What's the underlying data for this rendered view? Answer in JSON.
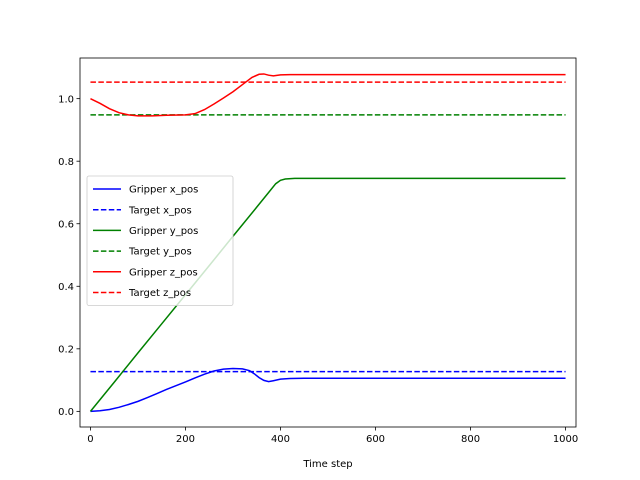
{
  "chart_data": {
    "type": "line",
    "title": "",
    "xlabel": "Time step",
    "ylabel": "",
    "xlim": [
      -22,
      1022
    ],
    "ylim": [
      -0.05,
      1.13
    ],
    "xticks": [
      0,
      200,
      400,
      600,
      800,
      1000
    ],
    "yticks": [
      0.0,
      0.2,
      0.4,
      0.6,
      0.8,
      1.0
    ],
    "xtick_labels": [
      "0",
      "200",
      "400",
      "600",
      "800",
      "1000"
    ],
    "ytick_labels": [
      "0.0",
      "0.2",
      "0.4",
      "0.6",
      "0.8",
      "1.0"
    ],
    "grid": false,
    "legend_position": "center-left",
    "series": [
      {
        "name": "Gripper x_pos",
        "color": "#0000ff",
        "style": "solid",
        "points": [
          [
            0,
            0.0
          ],
          [
            20,
            0.002
          ],
          [
            40,
            0.006
          ],
          [
            60,
            0.013
          ],
          [
            80,
            0.022
          ],
          [
            100,
            0.032
          ],
          [
            120,
            0.044
          ],
          [
            140,
            0.057
          ],
          [
            160,
            0.07
          ],
          [
            180,
            0.082
          ],
          [
            200,
            0.094
          ],
          [
            220,
            0.107
          ],
          [
            240,
            0.119
          ],
          [
            260,
            0.129
          ],
          [
            280,
            0.135
          ],
          [
            300,
            0.137
          ],
          [
            320,
            0.136
          ],
          [
            335,
            0.13
          ],
          [
            345,
            0.12
          ],
          [
            355,
            0.108
          ],
          [
            365,
            0.099
          ],
          [
            375,
            0.095
          ],
          [
            385,
            0.098
          ],
          [
            400,
            0.103
          ],
          [
            420,
            0.105
          ],
          [
            450,
            0.106
          ],
          [
            500,
            0.106
          ],
          [
            1000,
            0.106
          ]
        ]
      },
      {
        "name": "Target x_pos",
        "color": "#0000ff",
        "style": "dashed",
        "points": [
          [
            0,
            0.127
          ],
          [
            1000,
            0.127
          ]
        ]
      },
      {
        "name": "Gripper y_pos",
        "color": "#008000",
        "style": "solid",
        "points": [
          [
            0,
            0.0
          ],
          [
            50,
            0.093
          ],
          [
            100,
            0.187
          ],
          [
            150,
            0.28
          ],
          [
            200,
            0.373
          ],
          [
            250,
            0.466
          ],
          [
            300,
            0.56
          ],
          [
            350,
            0.653
          ],
          [
            375,
            0.7
          ],
          [
            390,
            0.728
          ],
          [
            400,
            0.739
          ],
          [
            410,
            0.743
          ],
          [
            430,
            0.745
          ],
          [
            500,
            0.745
          ],
          [
            1000,
            0.745
          ]
        ]
      },
      {
        "name": "Target y_pos",
        "color": "#008000",
        "style": "dashed",
        "points": [
          [
            0,
            0.948
          ],
          [
            1000,
            0.948
          ]
        ]
      },
      {
        "name": "Gripper z_pos",
        "color": "#ff0000",
        "style": "solid",
        "points": [
          [
            0,
            1.0
          ],
          [
            20,
            0.985
          ],
          [
            40,
            0.968
          ],
          [
            60,
            0.955
          ],
          [
            80,
            0.948
          ],
          [
            100,
            0.945
          ],
          [
            130,
            0.945
          ],
          [
            160,
            0.947
          ],
          [
            200,
            0.948
          ],
          [
            220,
            0.952
          ],
          [
            240,
            0.965
          ],
          [
            260,
            0.983
          ],
          [
            280,
            1.002
          ],
          [
            300,
            1.022
          ],
          [
            320,
            1.045
          ],
          [
            340,
            1.068
          ],
          [
            355,
            1.078
          ],
          [
            365,
            1.079
          ],
          [
            375,
            1.075
          ],
          [
            385,
            1.073
          ],
          [
            400,
            1.076
          ],
          [
            420,
            1.077
          ],
          [
            500,
            1.077
          ],
          [
            1000,
            1.077
          ]
        ]
      },
      {
        "name": "Target z_pos",
        "color": "#ff0000",
        "style": "dashed",
        "points": [
          [
            0,
            1.053
          ],
          [
            1000,
            1.053
          ]
        ]
      }
    ]
  }
}
